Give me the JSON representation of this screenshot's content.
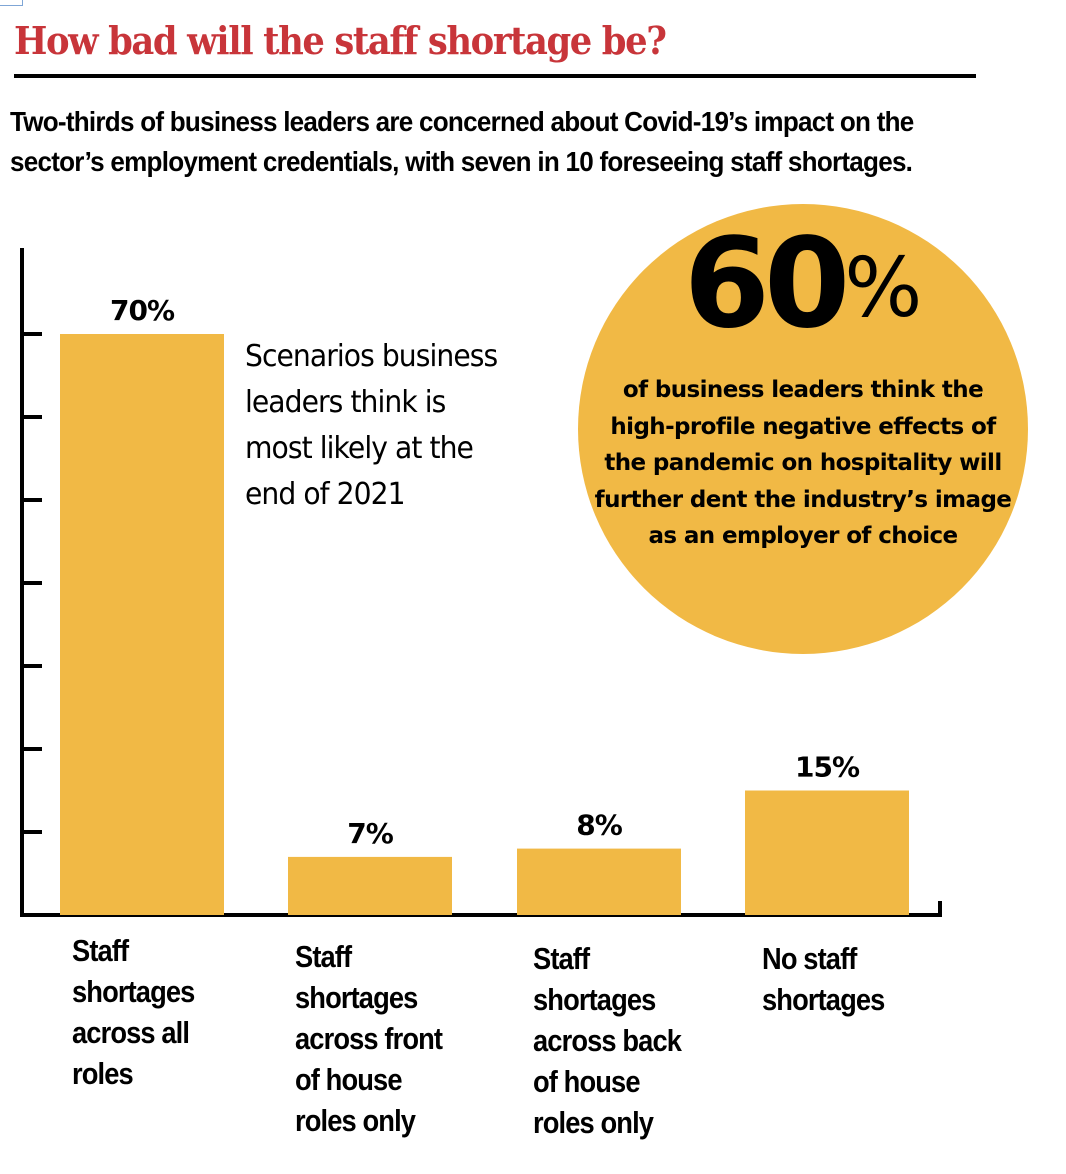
{
  "header": {
    "title": "How bad will the staff shortage be?",
    "subtitle": "Two-thirds of business leaders are concerned about Covid-19’s impact on the sector’s employment credentials, with seven in 10 foreseeing staff shortages."
  },
  "colors": {
    "title": "#c8353a",
    "bar": "#f1b945",
    "callout": "#f1b945",
    "axis": "#000000"
  },
  "annotation": "Scenarios business leaders think is most likely at the end of 2021",
  "callout": {
    "value": "60",
    "unit": "%",
    "text": "of business leaders think the high-profile negative effects of the pandemic on hospitality will further dent the industry’s image as an employer of choice"
  },
  "chart_data": {
    "type": "bar",
    "title": "Scenarios business leaders think is most likely at the end of 2021",
    "xlabel": "",
    "ylabel": "",
    "ylim": [
      0,
      80
    ],
    "ytick_step": 10,
    "ytick_labels_shown": false,
    "grid": false,
    "categories": [
      "Staff shortages across all roles",
      "Staff shortages across front of house roles only",
      "Staff shortages across back of house roles only",
      "No staff shortages"
    ],
    "category_lines": [
      "Staff\nshortages\nacross all\nroles",
      "Staff\nshortages\nacross front\nof house\nroles only",
      "Staff\nshortages\nacross back\nof house\nroles only",
      "No staff\nshortages"
    ],
    "values": [
      70,
      7,
      8,
      15
    ],
    "value_labels": [
      "70%",
      "7%",
      "8%",
      "15%"
    ],
    "units": "%"
  }
}
